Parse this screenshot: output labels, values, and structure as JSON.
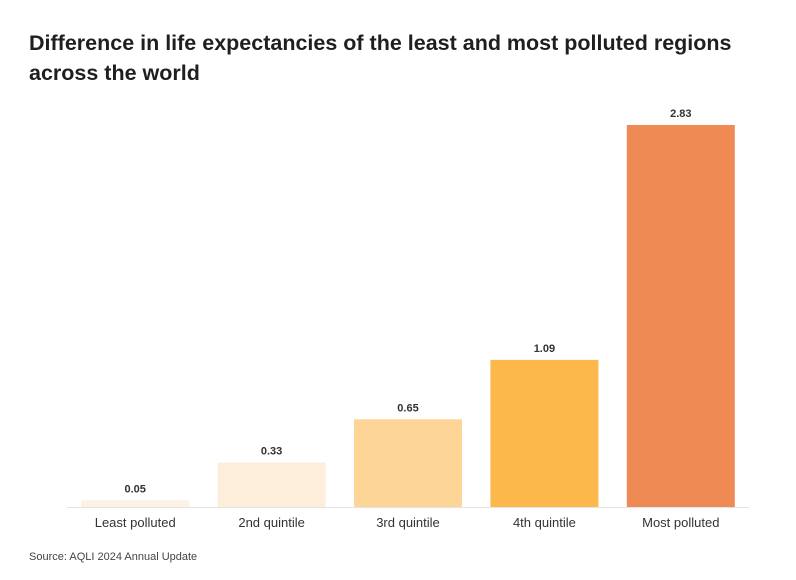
{
  "chart_data": {
    "type": "bar",
    "title": "Difference in life expectancies of the least and most polluted regions across the world",
    "categories": [
      "Least polluted",
      "2nd quintile",
      "3rd quintile",
      "4th quintile",
      "Most polluted"
    ],
    "values": [
      0.05,
      0.33,
      0.65,
      1.09,
      2.83
    ],
    "value_labels": [
      "0.05",
      "0.33",
      "0.65",
      "1.09",
      "2.83"
    ],
    "colors": [
      "#fdf0e4",
      "#fdeedc",
      "#fdd596",
      "#fdb84c",
      "#ef8a55"
    ],
    "xlabel": "",
    "ylabel": "",
    "ylim": [
      0,
      2.83
    ],
    "grid": false,
    "legend": "none"
  },
  "source": "Source: AQLI 2024 Annual Update"
}
